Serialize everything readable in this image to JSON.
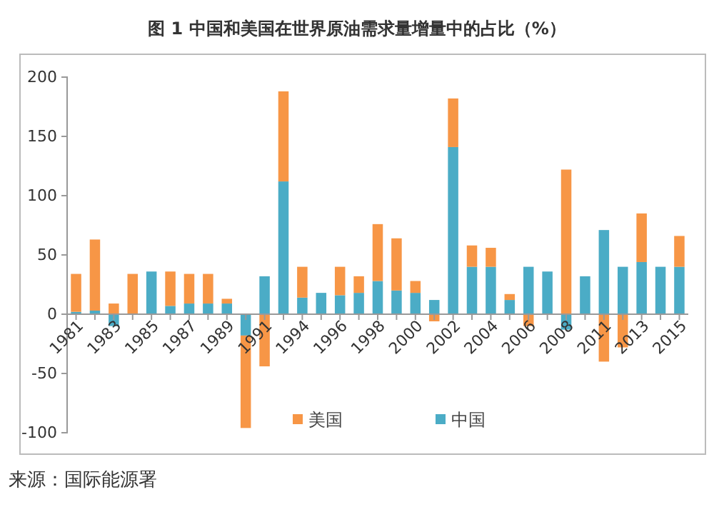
{
  "chart_data": {
    "type": "bar",
    "stacked": true,
    "title": "图 1  中国和美国在世界原油需求量增量中的占比（%）",
    "categories": [
      "1981",
      null,
      "1983",
      null,
      "1985",
      null,
      "1987",
      null,
      "1989",
      null,
      "1991",
      null,
      "1994",
      null,
      "1996",
      null,
      "1998",
      null,
      "2000",
      null,
      "2002",
      null,
      "2004",
      null,
      "2006",
      null,
      "2008",
      null,
      "2011",
      null,
      "2013",
      null,
      "2015"
    ],
    "series": [
      {
        "name": "中国",
        "color": "#4bacc6",
        "values": [
          2,
          3,
          -10,
          0,
          36,
          7,
          9,
          9,
          9,
          -18,
          32,
          112,
          14,
          18,
          16,
          18,
          28,
          20,
          18,
          12,
          141,
          40,
          40,
          12,
          40,
          36,
          -13,
          32,
          71,
          40,
          44,
          40,
          40
        ]
      },
      {
        "name": "美国",
        "color": "#f79646",
        "values": [
          32,
          60,
          9,
          34,
          0,
          29,
          25,
          25,
          4,
          -78,
          -44,
          76,
          26,
          0,
          24,
          14,
          48,
          44,
          10,
          -6,
          41,
          18,
          16,
          5,
          -10,
          0,
          122,
          0,
          -40,
          -28,
          41,
          0,
          26
        ]
      }
    ],
    "ylim": [
      -100,
      200
    ],
    "yticks": [
      -100,
      -50,
      0,
      50,
      100,
      150,
      200
    ],
    "grid": false,
    "legend": "bottom",
    "annotations": [
      "来源：国际能源署"
    ]
  }
}
